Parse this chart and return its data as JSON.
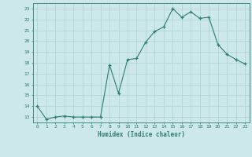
{
  "x": [
    0,
    1,
    2,
    3,
    4,
    5,
    6,
    7,
    8,
    9,
    10,
    11,
    12,
    13,
    14,
    15,
    16,
    17,
    18,
    19,
    20,
    21,
    22,
    23
  ],
  "y": [
    14.0,
    12.8,
    13.0,
    13.1,
    13.0,
    13.0,
    13.0,
    13.0,
    17.8,
    15.2,
    18.3,
    18.4,
    19.9,
    20.9,
    21.3,
    23.0,
    22.2,
    22.7,
    22.1,
    22.2,
    19.7,
    18.8,
    18.3,
    17.9
  ],
  "xlabel": "Humidex (Indice chaleur)",
  "ylim": [
    12.5,
    23.5
  ],
  "xlim": [
    -0.5,
    23.5
  ],
  "yticks": [
    13,
    14,
    15,
    16,
    17,
    18,
    19,
    20,
    21,
    22,
    23
  ],
  "xticks": [
    0,
    1,
    2,
    3,
    4,
    5,
    6,
    7,
    8,
    9,
    10,
    11,
    12,
    13,
    14,
    15,
    16,
    17,
    18,
    19,
    20,
    21,
    22,
    23
  ],
  "line_color": "#2e7d72",
  "marker_color": "#2e7d72",
  "bg_color": "#cce8e8",
  "grid_color": "#aad0d0",
  "tick_color": "#2e7d72",
  "label_color": "#2e7d72",
  "axis_color": "#2e7d72",
  "font_family": "monospace"
}
